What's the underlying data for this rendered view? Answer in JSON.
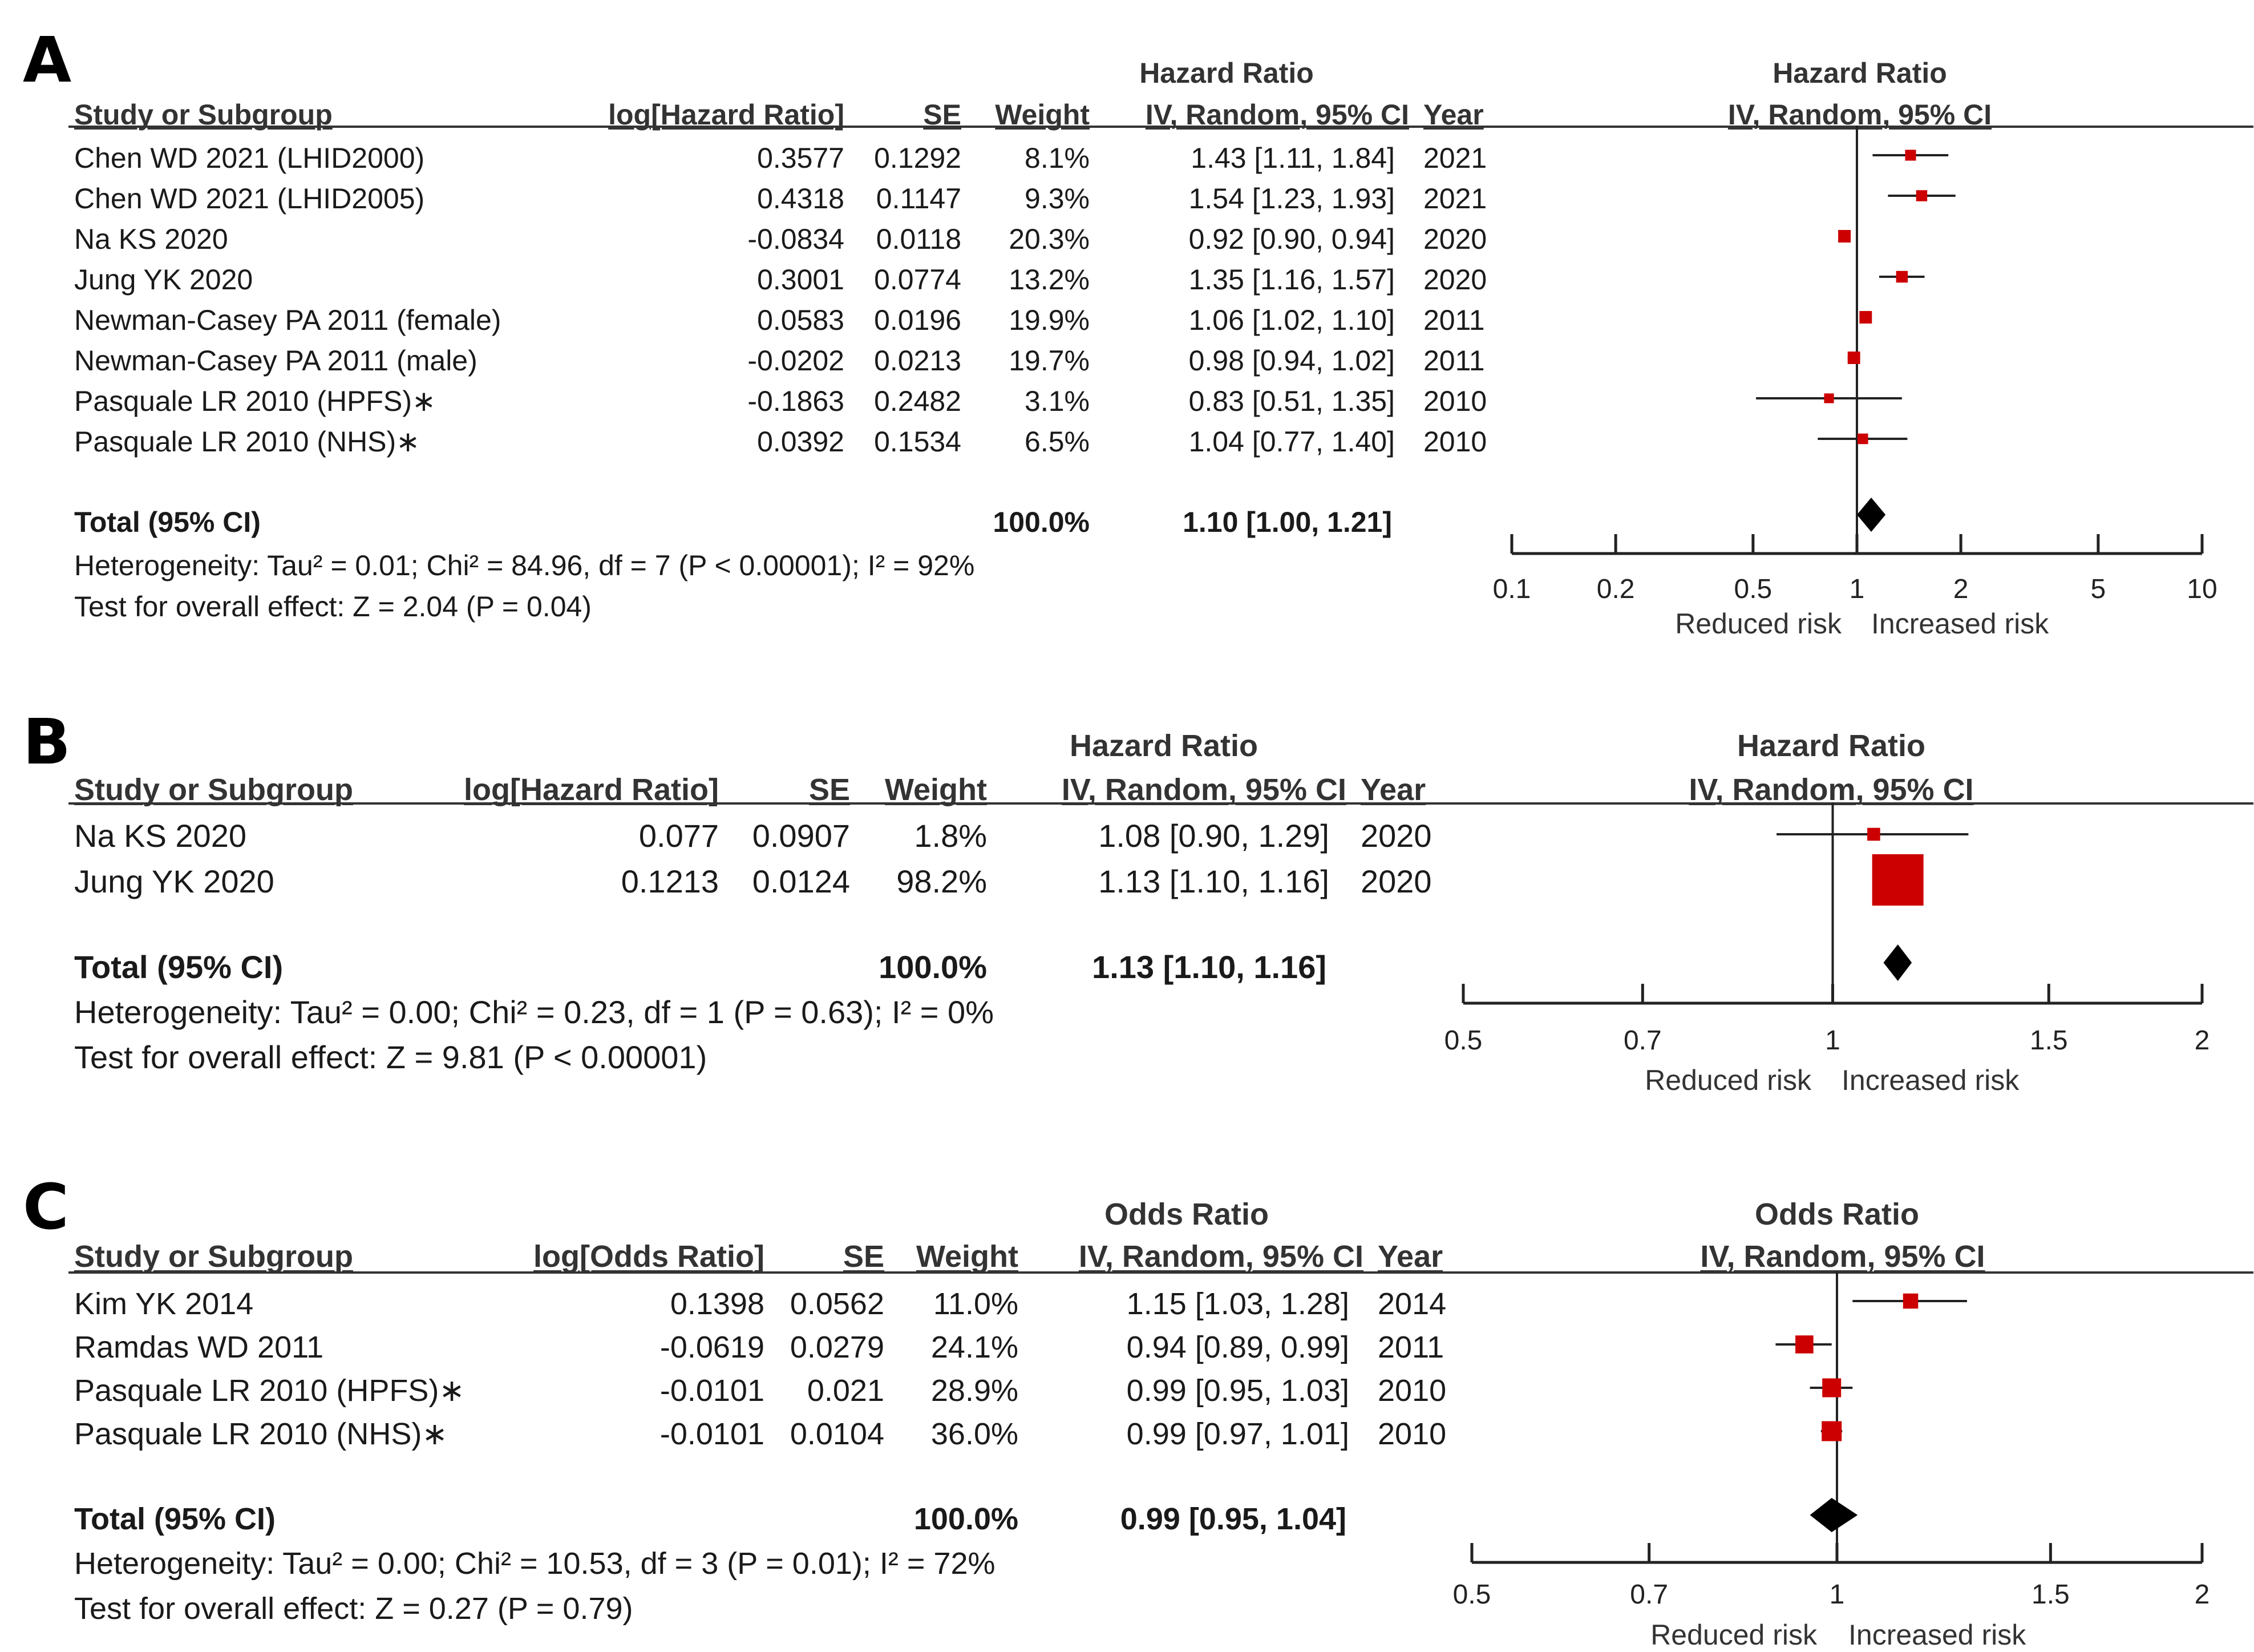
{
  "chart_data": [
    {
      "type": "forest",
      "panel": "A",
      "effect_header": "Hazard Ratio",
      "effect_subheader": "IV, Random, 95% CI",
      "columns": [
        "Study or Subgroup",
        "log[Hazard Ratio]",
        "SE",
        "Weight",
        "IV, Random, 95% CI",
        "Year"
      ],
      "studies": [
        {
          "name": "Chen WD 2021 (LHID2000)",
          "log_est": "0.3577",
          "se": "0.1292",
          "weight": "8.1%",
          "ci_text": "1.43 [1.11, 1.84]",
          "year": "2021",
          "est": 1.43,
          "lo": 1.11,
          "hi": 1.84,
          "w": 8.1
        },
        {
          "name": "Chen WD 2021 (LHID2005)",
          "log_est": "0.4318",
          "se": "0.1147",
          "weight": "9.3%",
          "ci_text": "1.54 [1.23, 1.93]",
          "year": "2021",
          "est": 1.54,
          "lo": 1.23,
          "hi": 1.93,
          "w": 9.3
        },
        {
          "name": "Na KS 2020",
          "log_est": "-0.0834",
          "se": "0.0118",
          "weight": "20.3%",
          "ci_text": "0.92 [0.90, 0.94]",
          "year": "2020",
          "est": 0.92,
          "lo": 0.9,
          "hi": 0.94,
          "w": 20.3
        },
        {
          "name": "Jung YK 2020",
          "log_est": "0.3001",
          "se": "0.0774",
          "weight": "13.2%",
          "ci_text": "1.35 [1.16, 1.57]",
          "year": "2020",
          "est": 1.35,
          "lo": 1.16,
          "hi": 1.57,
          "w": 13.2
        },
        {
          "name": "Newman-Casey PA 2011 (female)",
          "log_est": "0.0583",
          "se": "0.0196",
          "weight": "19.9%",
          "ci_text": "1.06 [1.02, 1.10]",
          "year": "2011",
          "est": 1.06,
          "lo": 1.02,
          "hi": 1.1,
          "w": 19.9
        },
        {
          "name": "Newman-Casey PA 2011 (male)",
          "log_est": "-0.0202",
          "se": "0.0213",
          "weight": "19.7%",
          "ci_text": "0.98 [0.94, 1.02]",
          "year": "2011",
          "est": 0.98,
          "lo": 0.94,
          "hi": 1.02,
          "w": 19.7
        },
        {
          "name": "Pasquale LR 2010 (HPFS)∗",
          "log_est": "-0.1863",
          "se": "0.2482",
          "weight": "3.1%",
          "ci_text": "0.83 [0.51, 1.35]",
          "year": "2010",
          "est": 0.83,
          "lo": 0.51,
          "hi": 1.35,
          "w": 3.1
        },
        {
          "name": "Pasquale LR 2010 (NHS)∗",
          "log_est": "0.0392",
          "se": "0.1534",
          "weight": "6.5%",
          "ci_text": "1.04 [0.77, 1.40]",
          "year": "2010",
          "est": 1.04,
          "lo": 0.77,
          "hi": 1.4,
          "w": 6.5
        }
      ],
      "total": {
        "label": "Total (95% CI)",
        "weight": "100.0%",
        "ci_text": "1.10 [1.00, 1.21]",
        "est": 1.1,
        "lo": 1.0,
        "hi": 1.21
      },
      "heterogeneity": "Heterogeneity: Tau² = 0.01; Chi² = 84.96, df = 7 (P < 0.00001); I² = 92%",
      "overall_effect": "Test for overall effect: Z = 2.04 (P = 0.04)",
      "x_scale": "log",
      "xlim": [
        0.1,
        10
      ],
      "ticks": [
        0.1,
        0.2,
        0.5,
        1,
        2,
        5,
        10
      ],
      "tick_labels": [
        "0.1",
        "0.2",
        "0.5",
        "1",
        "2",
        "5",
        "10"
      ],
      "favours_left": "Reduced risk",
      "favours_right": "Increased risk"
    },
    {
      "type": "forest",
      "panel": "B",
      "effect_header": "Hazard Ratio",
      "effect_subheader": "IV, Random, 95% CI",
      "columns": [
        "Study or Subgroup",
        "log[Hazard Ratio]",
        "SE",
        "Weight",
        "IV, Random, 95% CI",
        "Year"
      ],
      "studies": [
        {
          "name": "Na KS 2020",
          "log_est": "0.077",
          "se": "0.0907",
          "weight": "1.8%",
          "ci_text": "1.08 [0.90, 1.29]",
          "year": "2020",
          "est": 1.08,
          "lo": 0.9,
          "hi": 1.29,
          "w": 1.8
        },
        {
          "name": "Jung YK 2020",
          "log_est": "0.1213",
          "se": "0.0124",
          "weight": "98.2%",
          "ci_text": "1.13 [1.10, 1.16]",
          "year": "2020",
          "est": 1.13,
          "lo": 1.1,
          "hi": 1.16,
          "w": 98.2
        }
      ],
      "total": {
        "label": "Total (95% CI)",
        "weight": "100.0%",
        "ci_text": "1.13 [1.10, 1.16]",
        "est": 1.13,
        "lo": 1.1,
        "hi": 1.16
      },
      "heterogeneity": "Heterogeneity: Tau² = 0.00; Chi² = 0.23, df = 1 (P = 0.63); I² = 0%",
      "overall_effect": "Test for overall effect: Z = 9.81 (P < 0.00001)",
      "x_scale": "log",
      "xlim": [
        0.5,
        2
      ],
      "ticks": [
        0.5,
        0.7,
        1,
        1.5,
        2
      ],
      "tick_labels": [
        "0.5",
        "0.7",
        "1",
        "1.5",
        "2"
      ],
      "favours_left": "Reduced risk",
      "favours_right": "Increased risk"
    },
    {
      "type": "forest",
      "panel": "C",
      "effect_header": "Odds Ratio",
      "effect_subheader": "IV, Random, 95% CI",
      "columns": [
        "Study or Subgroup",
        "log[Odds Ratio]",
        "SE",
        "Weight",
        "IV, Random, 95% CI",
        "Year"
      ],
      "studies": [
        {
          "name": "Kim YK 2014",
          "log_est": "0.1398",
          "se": "0.0562",
          "weight": "11.0%",
          "ci_text": "1.15 [1.03, 1.28]",
          "year": "2014",
          "est": 1.15,
          "lo": 1.03,
          "hi": 1.28,
          "w": 11.0
        },
        {
          "name": "Ramdas WD 2011",
          "log_est": "-0.0619",
          "se": "0.0279",
          "weight": "24.1%",
          "ci_text": "0.94 [0.89, 0.99]",
          "year": "2011",
          "est": 0.94,
          "lo": 0.89,
          "hi": 0.99,
          "w": 24.1
        },
        {
          "name": "Pasquale LR 2010 (HPFS)∗",
          "log_est": "-0.0101",
          "se": "0.021",
          "weight": "28.9%",
          "ci_text": "0.99 [0.95, 1.03]",
          "year": "2010",
          "est": 0.99,
          "lo": 0.95,
          "hi": 1.03,
          "w": 28.9
        },
        {
          "name": "Pasquale LR 2010 (NHS)∗",
          "log_est": "-0.0101",
          "se": "0.0104",
          "weight": "36.0%",
          "ci_text": "0.99 [0.97, 1.01]",
          "year": "2010",
          "est": 0.99,
          "lo": 0.97,
          "hi": 1.01,
          "w": 36.0
        }
      ],
      "total": {
        "label": "Total (95% CI)",
        "weight": "100.0%",
        "ci_text": "0.99 [0.95, 1.04]",
        "est": 0.99,
        "lo": 0.95,
        "hi": 1.04
      },
      "heterogeneity": "Heterogeneity: Tau² = 0.00; Chi² = 10.53, df = 3 (P = 0.01); I² = 72%",
      "overall_effect": "Test for overall effect: Z = 0.27 (P = 0.79)",
      "x_scale": "log",
      "xlim": [
        0.5,
        2
      ],
      "ticks": [
        0.5,
        0.7,
        1,
        1.5,
        2
      ],
      "tick_labels": [
        "0.5",
        "0.7",
        "1",
        "1.5",
        "2"
      ],
      "favours_left": "Reduced risk",
      "favours_right": "Increased risk"
    }
  ]
}
